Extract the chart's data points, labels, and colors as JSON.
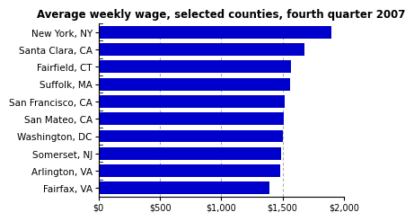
{
  "title": "Average weekly wage, selected counties, fourth quarter 2007",
  "categories": [
    "Fairfax, VA",
    "Arlington, VA",
    "Somerset, NJ",
    "Washington, DC",
    "San Mateo, CA",
    "San Francisco, CA",
    "Suffolk, MA",
    "Fairfield, CT",
    "Santa Clara, CA",
    "New York, NY"
  ],
  "values": [
    1390,
    1480,
    1490,
    1500,
    1510,
    1520,
    1560,
    1570,
    1680,
    1900
  ],
  "bar_color": "#0000cc",
  "xlim": [
    0,
    2000
  ],
  "xticks": [
    0,
    500,
    1000,
    1500,
    2000
  ],
  "xtick_labels": [
    "$0",
    "$500",
    "$1,000",
    "$1,500",
    "$2,000"
  ],
  "background_color": "#ffffff",
  "title_fontsize": 8.5,
  "tick_fontsize": 7,
  "label_fontsize": 7.5,
  "bar_height": 0.72
}
